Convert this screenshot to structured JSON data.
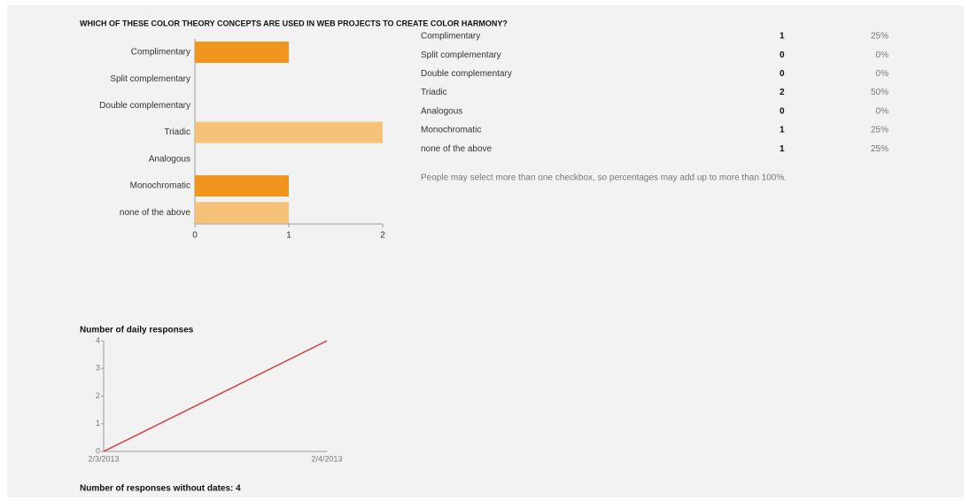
{
  "question": "WHICH OF THESE COLOR THEORY CONCEPTS ARE USED IN WEB PROJECTS TO CREATE COLOR HARMONY?",
  "chart_data": [
    {
      "type": "hbar",
      "categories": [
        "Complimentary",
        "Split complementary",
        "Double complementary",
        "Triadic",
        "Analogous",
        "Monochromatic",
        "none of the above"
      ],
      "values": [
        1,
        0,
        0,
        2,
        0,
        1,
        1
      ],
      "colors": [
        "#f0961e",
        "#f5c27a",
        "#f0961e",
        "#f5c27a",
        "#f0961e",
        "#f0961e",
        "#f5c27a"
      ],
      "xlim": [
        0,
        2
      ],
      "xticks": [
        0,
        1,
        2
      ]
    },
    {
      "type": "line",
      "title": "Number of daily responses",
      "x": [
        "2/3/2013",
        "2/4/2013"
      ],
      "values": [
        0,
        4
      ],
      "color": "#d93a3a",
      "ylim": [
        0,
        4
      ],
      "yticks": [
        0,
        1,
        2,
        3,
        4
      ]
    }
  ],
  "table": {
    "rows": [
      [
        "Complimentary",
        1,
        "25%"
      ],
      [
        "Split complementary",
        0,
        "0%"
      ],
      [
        "Double complementary",
        0,
        "0%"
      ],
      [
        "Triadic",
        2,
        "50%"
      ],
      [
        "Analogous",
        0,
        "0%"
      ],
      [
        "Monochromatic",
        1,
        "25%"
      ],
      [
        "none of the above",
        1,
        "25%"
      ]
    ]
  },
  "note": "People may select more than one checkbox, so percentages may add up to more than 100%.",
  "undated": "Number of responses without dates: 4"
}
